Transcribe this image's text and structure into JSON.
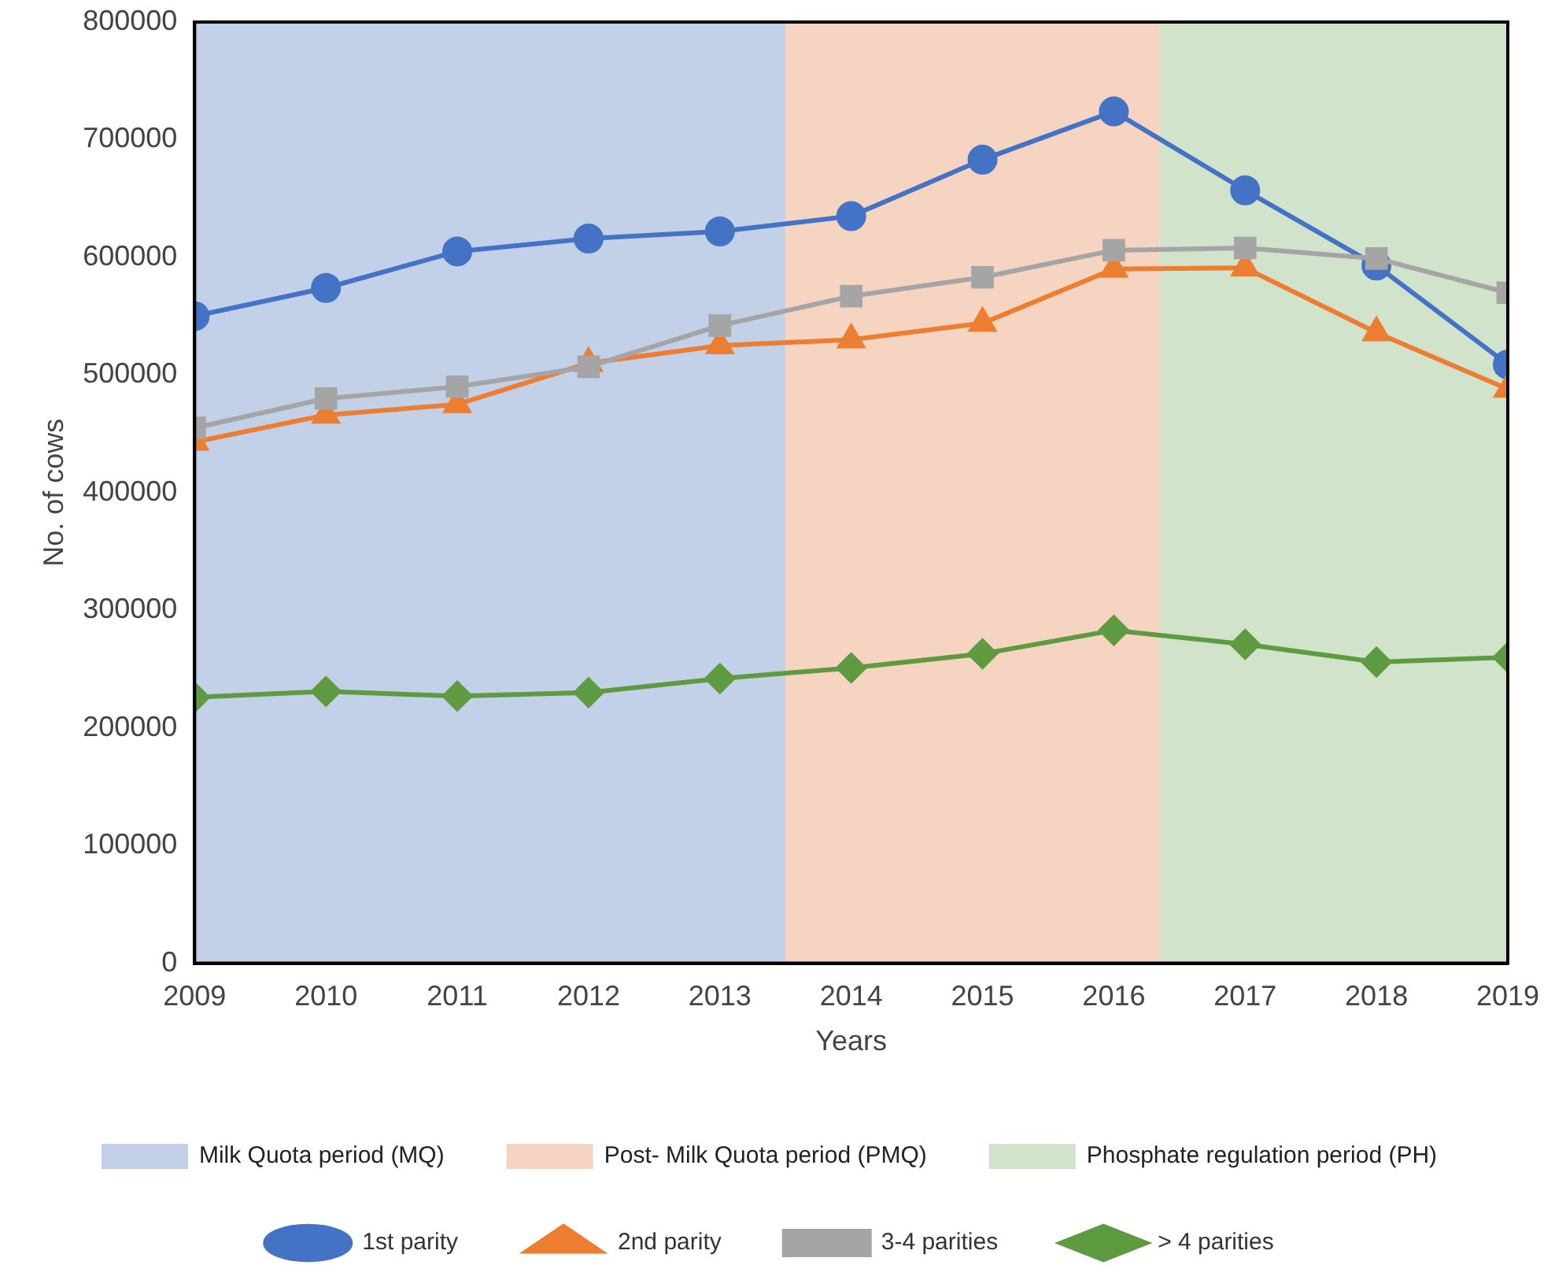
{
  "chart_data": {
    "type": "line",
    "xlabel": "Years",
    "ylabel": "No. of cows",
    "x": [
      2009,
      2010,
      2011,
      2012,
      2013,
      2014,
      2015,
      2016,
      2017,
      2018,
      2019
    ],
    "xlim": [
      2009,
      2019
    ],
    "xticks": [
      2009,
      2010,
      2011,
      2012,
      2013,
      2014,
      2015,
      2016,
      2017,
      2018,
      2019
    ],
    "ylim": [
      0,
      800000
    ],
    "yticks": [
      0,
      100000,
      200000,
      300000,
      400000,
      500000,
      600000,
      700000,
      800000
    ],
    "grid": false,
    "legend": "bottom",
    "line_style": "solid",
    "series": [
      {
        "name": "1st parity",
        "color": "#4472c4",
        "marker": "circle",
        "values": [
          550000,
          574000,
          605000,
          616000,
          622000,
          635000,
          683000,
          724000,
          657000,
          593000,
          509000
        ]
      },
      {
        "name": "2nd parity",
        "color": "#ed7d31",
        "marker": "triangle",
        "values": [
          443000,
          466000,
          475000,
          510000,
          525000,
          530000,
          544000,
          590000,
          591000,
          536000,
          488000
        ]
      },
      {
        "name": "3-4 parities",
        "color": "#a5a5a5",
        "marker": "square",
        "values": [
          455000,
          480000,
          490000,
          507000,
          542000,
          567000,
          583000,
          606000,
          608000,
          599000,
          570000
        ]
      },
      {
        "name": "> 4 parities",
        "color": "#5e9a40",
        "marker": "diamond",
        "values": [
          226000,
          231000,
          227000,
          230000,
          242000,
          251000,
          263000,
          283000,
          271000,
          256000,
          260000
        ]
      }
    ],
    "bands": [
      {
        "axis": "x",
        "from": 2009,
        "to": 2013.5,
        "label": "Milk Quota period (MQ)",
        "color": "#c2d1e8"
      },
      {
        "axis": "x",
        "from": 2013.5,
        "to": 2016.35,
        "label": "Post- Milk Quota period (PMQ)",
        "color": "#f5d5c1"
      },
      {
        "axis": "x",
        "from": 2016.35,
        "to": 2019,
        "label": "Phosphate regulation period (PH)",
        "color": "#d1e3cb"
      }
    ]
  }
}
